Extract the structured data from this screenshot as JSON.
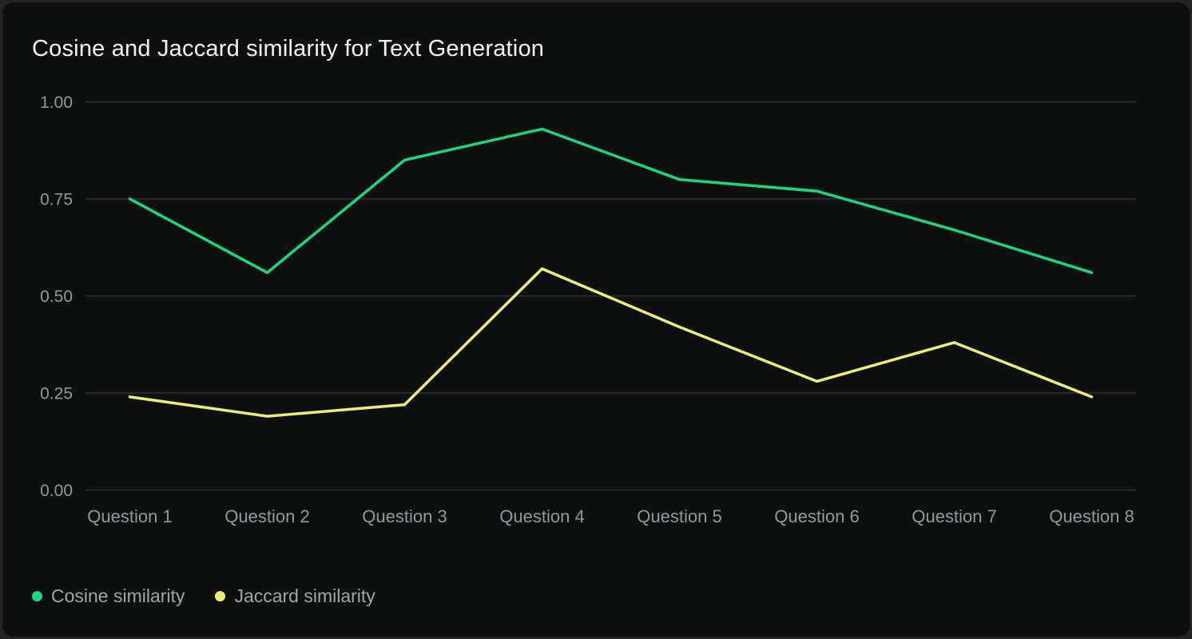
{
  "chart_data": {
    "type": "line",
    "title": "Cosine and Jaccard similarity for Text Generation",
    "categories": [
      "Question 1",
      "Question 2",
      "Question 3",
      "Question 4",
      "Question 5",
      "Question 6",
      "Question 7",
      "Question 8"
    ],
    "series": [
      {
        "name": "Cosine similarity",
        "color": "#15d97d",
        "values": [
          0.75,
          0.56,
          0.85,
          0.93,
          0.8,
          0.77,
          0.67,
          0.56
        ]
      },
      {
        "name": "Jaccard similarity",
        "color": "#eeee72",
        "values": [
          0.24,
          0.19,
          0.22,
          0.57,
          0.42,
          0.28,
          0.38,
          0.24
        ]
      }
    ],
    "ylim": [
      0.0,
      1.0
    ],
    "yticks": [
      "0.00",
      "0.25",
      "0.50",
      "0.75",
      "1.00"
    ],
    "grid": true,
    "legend_position": "bottom-left"
  },
  "colors": {
    "card_background": "#0e100f",
    "page_background": "#232323",
    "gridline": "#2f2f2f",
    "tick_text": "#94989d",
    "title_text": "#f4f4f4",
    "legend_text": "#a2a6aa",
    "cosine_green": "#15d97d",
    "jaccard_yellow": "#eeee72"
  }
}
